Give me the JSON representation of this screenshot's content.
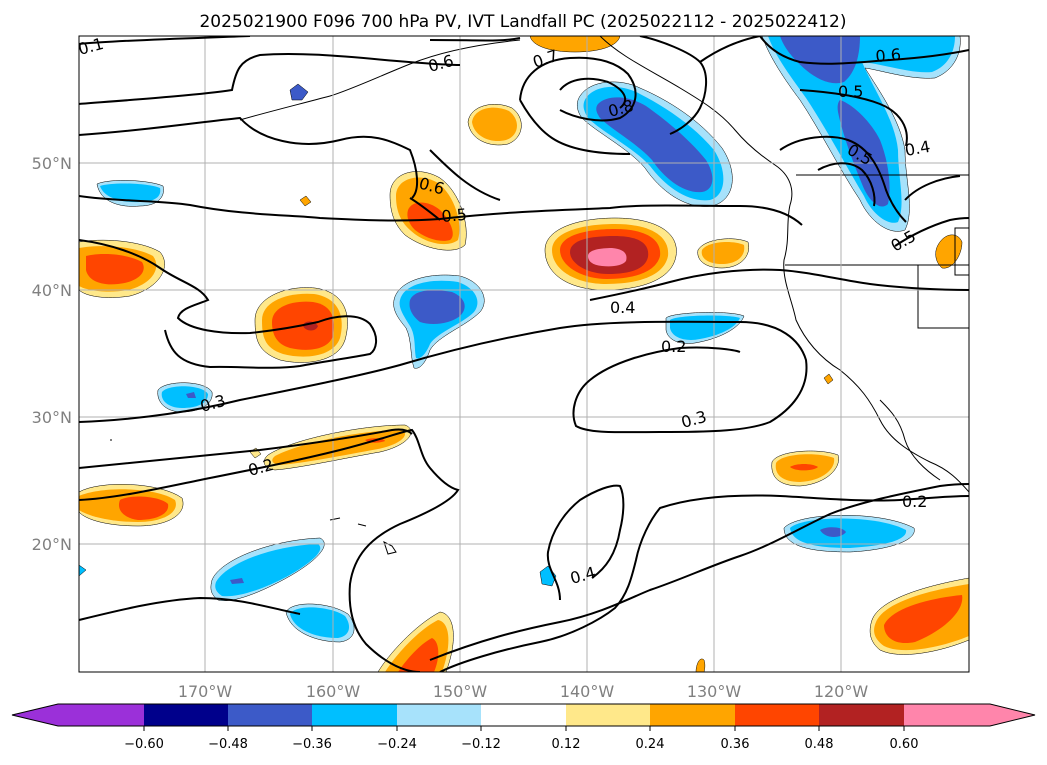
{
  "map": {
    "title": "2025021900 F096 700 hPa PV, IVT Landfall PC (2025022112 - 2025022412)",
    "lat_labels": [
      "50°N",
      "40°N",
      "30°N",
      "20°N"
    ],
    "lon_labels": [
      "170°W",
      "160°W",
      "150°W",
      "140°W",
      "130°W",
      "120°W"
    ],
    "contour_labels": [
      "0.1",
      "0.6",
      "0.7",
      "0.8",
      "0.6",
      "0.5",
      "0.6",
      "0.5",
      "0.4",
      "0.5",
      "0.5",
      "0.4",
      "0.2",
      "0.3",
      "0.3",
      "0.2",
      "0.2",
      "0.4"
    ],
    "colors": {
      "purple": "#9b30d9",
      "navy": "#00008b",
      "royal_blue": "#3c5ac8",
      "deep_sky": "#00bfff",
      "light_blue": "#a7e2fb",
      "white": "#ffffff",
      "light_yellow": "#ffe88a",
      "orange": "#ffa500",
      "orange_red": "#ff4500",
      "firebrick": "#b22222",
      "pink": "#ff85ab"
    }
  },
  "colorbar": {
    "tick_labels": [
      "−0.60",
      "−0.48",
      "−0.36",
      "−0.24",
      "−0.12",
      "0.12",
      "0.24",
      "0.36",
      "0.48",
      "0.60"
    ]
  }
}
